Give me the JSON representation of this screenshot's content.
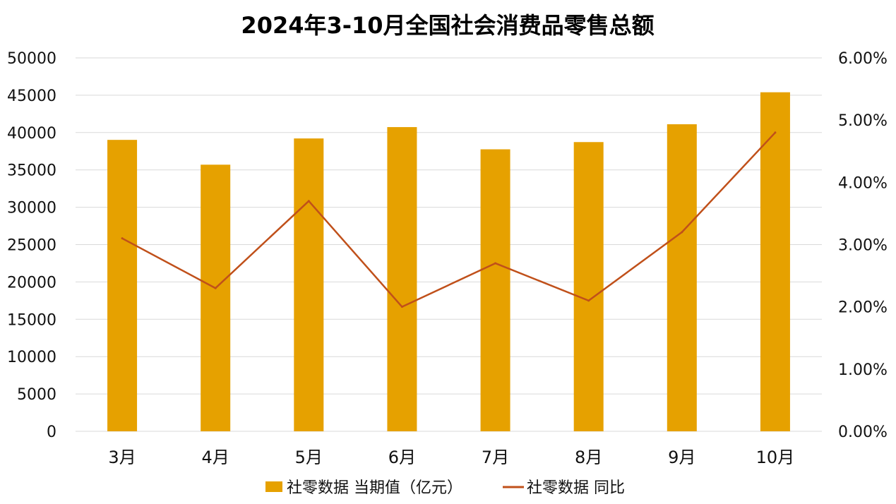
{
  "colors": {
    "bar": "#E6A100",
    "line": "#C0501A",
    "grid": "#d9d9d9"
  },
  "chart_data": {
    "type": "bar",
    "title": "2024年3-10月全国社会消费品零售总额",
    "categories": [
      "3月",
      "4月",
      "5月",
      "6月",
      "7月",
      "8月",
      "9月",
      "10月"
    ],
    "series": [
      {
        "name": "社零数据 当期值（亿元）",
        "type": "bar",
        "axis": "left",
        "values": [
          39020,
          35699,
          39211,
          40732,
          37757,
          38726,
          41112,
          45396
        ]
      },
      {
        "name": "社零数据 同比",
        "type": "line",
        "axis": "right",
        "values": [
          3.1,
          2.3,
          3.7,
          2.0,
          2.7,
          2.1,
          3.2,
          4.8
        ]
      }
    ],
    "y_left": {
      "min": 0,
      "max": 50000,
      "step": 5000,
      "ticks": [
        "0",
        "5000",
        "10000",
        "15000",
        "20000",
        "25000",
        "30000",
        "35000",
        "40000",
        "45000",
        "50000"
      ]
    },
    "y_right": {
      "min": 0,
      "max": 6,
      "step": 1,
      "ticks": [
        "0.00%",
        "1.00%",
        "2.00%",
        "3.00%",
        "4.00%",
        "5.00%",
        "6.00%"
      ]
    },
    "grid": true,
    "legend": "bottom"
  }
}
